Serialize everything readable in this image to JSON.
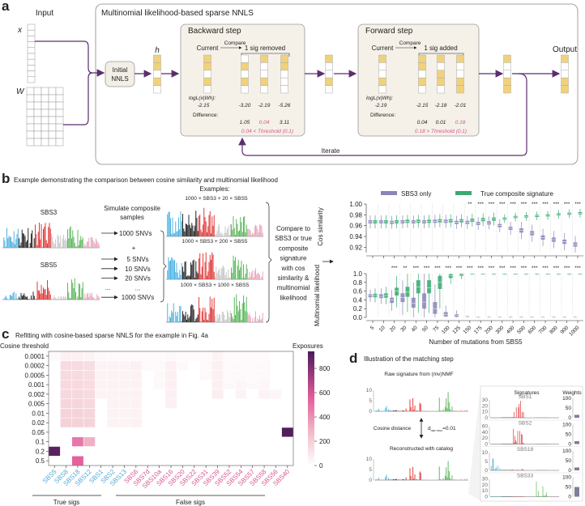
{
  "panel_a": {
    "letter": "a",
    "input_label": "Input",
    "x_label": "x",
    "w_label": "W",
    "box_title": "Multinomial likelihood-based sparse NNLS",
    "initial_nnls": [
      "Initial",
      "NNLS"
    ],
    "h_label": "h",
    "backward": {
      "title": "Backward step",
      "current": "Current",
      "compare": "Compare",
      "candidates": "1 sig removed",
      "logl_label": "logL(x|Wh):",
      "logl_current": "-2.15",
      "logl_values": [
        "-3.20",
        "-2.19",
        "-5.26"
      ],
      "difference_label": "Difference:",
      "differences": [
        "1.05",
        "0.04",
        "3.11"
      ],
      "highlight_index": 1,
      "threshold_text": "0.04 < Threshold (0.1)"
    },
    "forward": {
      "title": "Forward step",
      "current": "Current",
      "compare": "Compare",
      "candidates": "1 sig added",
      "logl_label": "logL(x|Wh):",
      "logl_current": "-2.19",
      "logl_values": [
        "-2.15",
        "-2.18",
        "-2.01"
      ],
      "difference_label": "Difference:",
      "differences": [
        "0.04",
        "0.01",
        "0.18"
      ],
      "highlight_index": 2,
      "threshold_text": "0.18 > Threshold (0.1)"
    },
    "output_label": "Output",
    "iterate_label": "Iterate",
    "colors": {
      "arrow": "#5b2d6e",
      "filled_cell": "#f1d27a",
      "highlight": "#d9558f"
    }
  },
  "panel_b": {
    "letter": "b",
    "title": "Example demonstrating the comparison between cosine similarity and multinomial likelihood",
    "sig1": "SBS3",
    "sig2": "SBS5",
    "simulate": [
      "Simulate composite",
      "samples"
    ],
    "base_count": "1000 SNVs",
    "plus": "+",
    "added_counts": [
      "5 SNVs",
      "10 SNVs",
      "20 SNVs",
      "...",
      "1000 SNVs"
    ],
    "ellipsis_left": "...",
    "examples_label": "Examples:",
    "examples": [
      "1000 × SBS3 + 20 × SBS5",
      "1000 × SBS3 + 200 × SBS5",
      "1000 × SBS3 + 1000 × SBS5"
    ],
    "compare_text": [
      "Compare to",
      "SBS3 or true",
      "composite",
      "signature",
      "with cos",
      "similarity &",
      "multinomial",
      "likelihood"
    ]
  },
  "chart_data": [
    {
      "type": "boxplot",
      "id": "cos",
      "ylabel": "Cos similarity",
      "ylim": [
        0.91,
        1.0
      ],
      "yticks": [
        "1.00",
        "0.98",
        "0.96",
        "0.94",
        "0.92"
      ],
      "categories": [
        "5",
        "10",
        "20",
        "30",
        "40",
        "50",
        "75",
        "100",
        "125",
        "150",
        "175",
        "200",
        "300",
        "400",
        "500",
        "600",
        "700",
        "800",
        "900",
        "1000"
      ],
      "legend": {
        "position": "top",
        "entries": [
          "SBS3 only",
          "True composite signature"
        ]
      },
      "series": [
        {
          "name": "SBS3 only",
          "color": "#8b86b8",
          "median": [
            0.967,
            0.967,
            0.966,
            0.967,
            0.967,
            0.967,
            0.968,
            0.968,
            0.966,
            0.966,
            0.964,
            0.965,
            0.96,
            0.955,
            0.951,
            0.946,
            0.938,
            0.934,
            0.93,
            0.925
          ],
          "q1": [
            0.964,
            0.964,
            0.963,
            0.964,
            0.964,
            0.964,
            0.965,
            0.965,
            0.963,
            0.963,
            0.961,
            0.962,
            0.957,
            0.952,
            0.947,
            0.942,
            0.934,
            0.93,
            0.926,
            0.921
          ],
          "q3": [
            0.97,
            0.97,
            0.969,
            0.97,
            0.97,
            0.97,
            0.971,
            0.971,
            0.969,
            0.969,
            0.967,
            0.968,
            0.963,
            0.958,
            0.955,
            0.95,
            0.942,
            0.938,
            0.934,
            0.929
          ]
        },
        {
          "name": "True composite signature",
          "color": "#3aaa72",
          "median": [
            0.967,
            0.967,
            0.967,
            0.968,
            0.968,
            0.968,
            0.969,
            0.969,
            0.969,
            0.97,
            0.971,
            0.972,
            0.973,
            0.976,
            0.977,
            0.978,
            0.979,
            0.981,
            0.982,
            0.983
          ],
          "q1": [
            0.964,
            0.964,
            0.964,
            0.965,
            0.965,
            0.965,
            0.966,
            0.966,
            0.966,
            0.967,
            0.968,
            0.969,
            0.971,
            0.974,
            0.975,
            0.976,
            0.977,
            0.979,
            0.98,
            0.981
          ],
          "q3": [
            0.97,
            0.97,
            0.97,
            0.971,
            0.971,
            0.971,
            0.972,
            0.972,
            0.972,
            0.973,
            0.974,
            0.975,
            0.975,
            0.978,
            0.979,
            0.98,
            0.981,
            0.983,
            0.984,
            0.985
          ]
        }
      ],
      "significance": [
        "",
        "",
        "",
        "",
        "",
        "",
        "",
        "",
        "",
        "**",
        "***",
        "***",
        "***",
        "***",
        "***",
        "***",
        "***",
        "***",
        "***",
        "***"
      ]
    },
    {
      "type": "boxplot",
      "id": "multinomial",
      "ylabel": "Multinomial likelihood",
      "ylim": [
        0,
        1.0
      ],
      "yticks": [
        "1.0",
        "0.8",
        "0.6",
        "0.4",
        "0.2",
        "0.0"
      ],
      "xlabel": "Number of mutations from SBS5",
      "categories": [
        "5",
        "10",
        "20",
        "30",
        "40",
        "50",
        "75",
        "100",
        "125",
        "150",
        "175",
        "200",
        "300",
        "400",
        "500",
        "600",
        "700",
        "800",
        "900",
        "1000"
      ],
      "series": [
        {
          "name": "SBS3 only",
          "color": "#8b86b8",
          "median": [
            0.5,
            0.48,
            0.4,
            0.45,
            0.32,
            0.35,
            0.2,
            0.06,
            0.04,
            0.01,
            0,
            0,
            0,
            0,
            0,
            0,
            0,
            0,
            0,
            0
          ],
          "q1": [
            0.46,
            0.44,
            0.33,
            0.35,
            0.22,
            0.2,
            0.08,
            0.02,
            0.01,
            0,
            0,
            0,
            0,
            0,
            0,
            0,
            0,
            0,
            0,
            0
          ],
          "q3": [
            0.53,
            0.53,
            0.45,
            0.55,
            0.45,
            0.55,
            0.35,
            0.12,
            0.07,
            0.02,
            0.01,
            0.01,
            0.01,
            0.01,
            0.01,
            0.01,
            0.01,
            0.01,
            0.01,
            0.01
          ]
        },
        {
          "name": "True composite signature",
          "color": "#3aaa72",
          "median": [
            0.5,
            0.5,
            0.6,
            0.58,
            0.7,
            0.68,
            0.8,
            0.95,
            0.98,
            1,
            1,
            1,
            1,
            1,
            1,
            1,
            1,
            1,
            1,
            1
          ],
          "q1": [
            0.46,
            0.45,
            0.5,
            0.47,
            0.55,
            0.55,
            0.65,
            0.9,
            0.95,
            0.99,
            0.99,
            0.99,
            0.99,
            0.99,
            0.99,
            0.99,
            0.99,
            0.99,
            0.99,
            0.99
          ],
          "q3": [
            0.54,
            0.55,
            0.68,
            0.7,
            0.85,
            0.85,
            0.95,
            0.99,
            1,
            1,
            1,
            1,
            1,
            1,
            1,
            1,
            1,
            1,
            1,
            1
          ]
        }
      ],
      "significance": [
        "",
        "",
        "***",
        "**",
        "***",
        "***",
        "***",
        "***",
        "***",
        "***",
        "***",
        "***",
        "***",
        "***",
        "***",
        "***",
        "***",
        "***",
        "***",
        "***"
      ]
    },
    {
      "type": "heatmap",
      "id": "refit",
      "letter": "c",
      "title": "Refitting with cosine-based sparse NNLS for the example in Fig. 4a",
      "ylabel": "Cosine threshold",
      "rows": [
        "0.0001",
        "0.0002",
        "0.0005",
        "0.001",
        "0.002",
        "0.005",
        "0.01",
        "0.02",
        "0.05",
        "0.1",
        "0.2",
        "0.5"
      ],
      "columns": [
        "SBS5",
        "SBS8",
        "SBS18",
        "SBS12",
        "SBS1",
        "SBS2",
        "SBS13",
        "SBS6",
        "SBS7d",
        "SBS10a",
        "SBS16",
        "SBS20",
        "SBS22",
        "SBS31",
        "SBS39",
        "SBS52",
        "SBS54",
        "SBS57",
        "SBS58",
        "SBS56",
        "SBS40"
      ],
      "true_sig_count": 7,
      "column_colors": {
        "true": "#4ea8d6",
        "false": "#d9558f"
      },
      "groups": [
        "True sigs",
        "False sigs"
      ],
      "colorbar": {
        "label": "Exposures",
        "ticks": [
          "800",
          "600",
          "400",
          "200",
          "0"
        ],
        "range": [
          0,
          940
        ],
        "colors": [
          "#ffffff",
          "#f3c6cf",
          "#e35c9a",
          "#4a1a5a"
        ]
      },
      "cells": [
        [
          0,
          0,
          30
        ],
        [
          0,
          1,
          60
        ],
        [
          0,
          2,
          60
        ],
        [
          0,
          3,
          50
        ],
        [
          0,
          4,
          30
        ],
        [
          0,
          5,
          25
        ],
        [
          0,
          6,
          25
        ],
        [
          0,
          7,
          25
        ],
        [
          0,
          8,
          25
        ],
        [
          0,
          9,
          25
        ],
        [
          0,
          10,
          30
        ],
        [
          0,
          11,
          25
        ],
        [
          0,
          12,
          25
        ],
        [
          0,
          13,
          25
        ],
        [
          0,
          14,
          50
        ],
        [
          0,
          15,
          25
        ],
        [
          0,
          16,
          25
        ],
        [
          0,
          17,
          25
        ],
        [
          0,
          18,
          25
        ],
        [
          1,
          1,
          150
        ],
        [
          1,
          2,
          150
        ],
        [
          1,
          3,
          140
        ],
        [
          1,
          4,
          50
        ],
        [
          1,
          5,
          50
        ],
        [
          1,
          6,
          50
        ],
        [
          1,
          7,
          60
        ],
        [
          1,
          8,
          30
        ],
        [
          1,
          9,
          30
        ],
        [
          1,
          10,
          60
        ],
        [
          1,
          11,
          30
        ],
        [
          1,
          13,
          30
        ],
        [
          1,
          14,
          60
        ],
        [
          1,
          15,
          30
        ],
        [
          1,
          16,
          30
        ],
        [
          1,
          17,
          30
        ],
        [
          1,
          18,
          30
        ],
        [
          2,
          1,
          150
        ],
        [
          2,
          2,
          150
        ],
        [
          2,
          3,
          140
        ],
        [
          2,
          4,
          50
        ],
        [
          2,
          5,
          50
        ],
        [
          2,
          6,
          50
        ],
        [
          2,
          7,
          55
        ],
        [
          2,
          9,
          30
        ],
        [
          2,
          10,
          60
        ],
        [
          2,
          13,
          30
        ],
        [
          2,
          14,
          60
        ],
        [
          2,
          15,
          30
        ],
        [
          2,
          16,
          30
        ],
        [
          2,
          17,
          30
        ],
        [
          2,
          18,
          30
        ],
        [
          3,
          1,
          155
        ],
        [
          3,
          2,
          155
        ],
        [
          3,
          3,
          145
        ],
        [
          3,
          4,
          50
        ],
        [
          3,
          5,
          50
        ],
        [
          3,
          6,
          50
        ],
        [
          3,
          7,
          55
        ],
        [
          3,
          9,
          30
        ],
        [
          3,
          10,
          60
        ],
        [
          3,
          14,
          60
        ],
        [
          3,
          15,
          30
        ],
        [
          3,
          16,
          40
        ],
        [
          3,
          17,
          30
        ],
        [
          3,
          18,
          40
        ],
        [
          4,
          1,
          160
        ],
        [
          4,
          2,
          160
        ],
        [
          4,
          3,
          150
        ],
        [
          4,
          4,
          50
        ],
        [
          4,
          5,
          50
        ],
        [
          4,
          6,
          50
        ],
        [
          4,
          7,
          55
        ],
        [
          4,
          10,
          60
        ],
        [
          4,
          14,
          70
        ],
        [
          4,
          16,
          50
        ],
        [
          4,
          18,
          50
        ],
        [
          4,
          19,
          40
        ],
        [
          5,
          1,
          170
        ],
        [
          5,
          2,
          170
        ],
        [
          5,
          3,
          160
        ],
        [
          5,
          5,
          50
        ],
        [
          5,
          6,
          50
        ],
        [
          5,
          7,
          55
        ],
        [
          5,
          10,
          60
        ],
        [
          6,
          1,
          180
        ],
        [
          6,
          2,
          180
        ],
        [
          6,
          3,
          170
        ],
        [
          6,
          5,
          50
        ],
        [
          6,
          6,
          50
        ],
        [
          6,
          7,
          55
        ],
        [
          7,
          1,
          190
        ],
        [
          7,
          2,
          190
        ],
        [
          7,
          3,
          180
        ],
        [
          7,
          5,
          50
        ],
        [
          7,
          6,
          50
        ],
        [
          7,
          7,
          55
        ],
        [
          8,
          20,
          920
        ],
        [
          9,
          2,
          480
        ],
        [
          9,
          3,
          300
        ],
        [
          10,
          0,
          900
        ],
        [
          11,
          2,
          550
        ]
      ]
    },
    {
      "type": "bar",
      "id": "weights",
      "title": "Weights",
      "categories": [
        "SBS1",
        "SBS2",
        "SBS18",
        "SBS33"
      ],
      "values": [
        15,
        15,
        15,
        50
      ],
      "ylim": [
        0,
        100
      ],
      "yticks": [
        "100",
        "50",
        "0"
      ],
      "color": "#7d7f9a"
    }
  ],
  "panel_d": {
    "letter": "d",
    "title": "Illustration of the matching step",
    "raw_label": "Raw signature from (mv)NMF",
    "distance_label": "Cosine distance",
    "distance_symbol": "d",
    "distance_subscript": "raw−reco",
    "distance_value": "=0.01",
    "reco_label": "Reconstructed with catalog",
    "spectrum_yticks": [
      "10",
      "5",
      "0"
    ],
    "signatures_header": "Signatures",
    "weights_header": "Weights",
    "signatures": [
      {
        "name": "SBS1",
        "yticks": [
          "30",
          "20",
          "10",
          "0"
        ]
      },
      {
        "name": "SBS2",
        "yticks": [
          "60",
          "40",
          "20",
          "0"
        ]
      },
      {
        "name": "SBS18",
        "yticks": [
          "10",
          "5",
          "0"
        ]
      },
      {
        "name": "SBS33",
        "yticks": [
          "30",
          "20",
          "10",
          "0"
        ]
      }
    ]
  },
  "spectrum_colors": [
    "#4fb3e0",
    "#262626",
    "#e03a3a",
    "#c9c9c9",
    "#5cb85c",
    "#e8a8bb"
  ]
}
